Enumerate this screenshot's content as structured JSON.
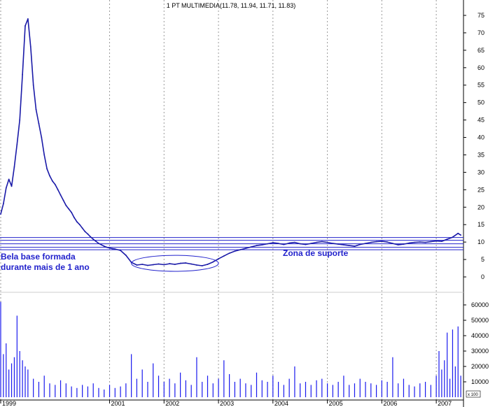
{
  "chart_data": {
    "type": "line",
    "title": "1 PT MULTIMEDIA(11.78, 11.94, 11.71, 11.83)",
    "price_axis": {
      "ylim": [
        0,
        75
      ],
      "ticks": [
        0,
        5,
        10,
        15,
        20,
        25,
        30,
        35,
        40,
        45,
        50,
        55,
        60,
        65,
        70,
        75
      ]
    },
    "volume_axis": {
      "ylim": [
        0,
        60000
      ],
      "ticks": [
        10000,
        20000,
        30000,
        40000,
        50000,
        60000
      ],
      "scale_label": "x 100"
    },
    "x_axis": {
      "xlim": [
        1999.0,
        2007.5
      ],
      "tick_labels": [
        "1999",
        "2001",
        "2002",
        "2003",
        "2004",
        "2005",
        "2006",
        "2007"
      ],
      "tick_values": [
        1999.0,
        2001.0,
        2002.0,
        2003.0,
        2004.0,
        2005.0,
        2006.0,
        2007.0
      ]
    },
    "grid": true,
    "series": [
      {
        "kind": "price",
        "x": [
          1999.0,
          1999.05,
          1999.1,
          1999.15,
          1999.2,
          1999.25,
          1999.3,
          1999.35,
          1999.4,
          1999.45,
          1999.5,
          1999.55,
          1999.6,
          1999.65,
          1999.7,
          1999.75,
          1999.8,
          1999.85,
          1999.9,
          1999.95,
          2000.0,
          2000.05,
          2000.1,
          2000.15,
          2000.2,
          2000.25,
          2000.3,
          2000.35,
          2000.4,
          2000.45,
          2000.5,
          2000.55,
          2000.6,
          2000.65,
          2000.7,
          2000.75,
          2000.8,
          2000.85,
          2000.9,
          2000.95,
          2001.0,
          2001.05,
          2001.1,
          2001.2,
          2001.3,
          2001.4,
          2001.5,
          2001.6,
          2001.7,
          2001.8,
          2001.9,
          2002.0,
          2002.1,
          2002.2,
          2002.3,
          2002.4,
          2002.5,
          2002.6,
          2002.7,
          2002.8,
          2002.9,
          2003.0,
          2003.1,
          2003.2,
          2003.3,
          2003.4,
          2003.5,
          2003.6,
          2003.7,
          2003.8,
          2003.9,
          2004.0,
          2004.1,
          2004.2,
          2004.3,
          2004.4,
          2004.5,
          2004.6,
          2004.7,
          2004.8,
          2004.9,
          2005.0,
          2005.1,
          2005.2,
          2005.3,
          2005.4,
          2005.5,
          2005.6,
          2005.7,
          2005.8,
          2005.9,
          2006.0,
          2006.1,
          2006.2,
          2006.3,
          2006.4,
          2006.5,
          2006.6,
          2006.7,
          2006.8,
          2006.9,
          2007.0,
          2007.1,
          2007.2,
          2007.3,
          2007.4,
          2007.45
        ],
        "y": [
          18.0,
          21.0,
          25.5,
          28.0,
          26.0,
          31.5,
          38.0,
          45.0,
          58.0,
          72.0,
          74.0,
          66.0,
          55.0,
          48.0,
          44.0,
          40.0,
          35.0,
          31.0,
          29.0,
          27.5,
          26.5,
          25.0,
          23.5,
          22.0,
          20.5,
          19.5,
          18.5,
          17.0,
          15.8,
          15.0,
          14.0,
          13.0,
          12.3,
          11.5,
          10.8,
          10.2,
          9.6,
          9.2,
          8.8,
          8.5,
          8.3,
          8.1,
          8.0,
          7.6,
          6.2,
          4.2,
          3.4,
          3.6,
          3.3,
          3.5,
          3.7,
          3.5,
          3.8,
          3.6,
          3.9,
          4.0,
          3.7,
          3.4,
          3.2,
          3.6,
          4.3,
          5.2,
          6.0,
          6.8,
          7.4,
          7.8,
          8.2,
          8.6,
          9.0,
          9.2,
          9.5,
          9.8,
          9.6,
          9.3,
          9.7,
          9.9,
          9.5,
          9.3,
          9.6,
          9.9,
          10.1,
          9.9,
          9.6,
          9.4,
          9.2,
          9.0,
          8.8,
          9.3,
          9.6,
          9.9,
          10.1,
          10.2,
          10.0,
          9.6,
          9.2,
          9.4,
          9.7,
          9.9,
          10.0,
          9.9,
          10.1,
          10.3,
          10.2,
          10.8,
          11.4,
          12.5,
          12.0
        ]
      },
      {
        "kind": "volume",
        "x": [
          1999.0,
          1999.05,
          1999.1,
          1999.15,
          1999.2,
          1999.25,
          1999.3,
          1999.35,
          1999.4,
          1999.45,
          1999.5,
          1999.6,
          1999.7,
          1999.8,
          1999.9,
          2000.0,
          2000.1,
          2000.2,
          2000.3,
          2000.4,
          2000.5,
          2000.6,
          2000.7,
          2000.8,
          2000.9,
          2001.0,
          2001.1,
          2001.2,
          2001.3,
          2001.4,
          2001.5,
          2001.6,
          2001.7,
          2001.8,
          2001.9,
          2002.0,
          2002.1,
          2002.2,
          2002.3,
          2002.4,
          2002.5,
          2002.6,
          2002.7,
          2002.8,
          2002.9,
          2003.0,
          2003.1,
          2003.2,
          2003.3,
          2003.4,
          2003.5,
          2003.6,
          2003.7,
          2003.8,
          2003.9,
          2004.0,
          2004.1,
          2004.2,
          2004.3,
          2004.4,
          2004.5,
          2004.6,
          2004.7,
          2004.8,
          2004.9,
          2005.0,
          2005.1,
          2005.2,
          2005.3,
          2005.4,
          2005.5,
          2005.6,
          2005.7,
          2005.8,
          2005.9,
          2006.0,
          2006.1,
          2006.2,
          2006.3,
          2006.4,
          2006.5,
          2006.6,
          2006.7,
          2006.8,
          2006.9,
          2007.0,
          2007.05,
          2007.1,
          2007.15,
          2007.2,
          2007.25,
          2007.3,
          2007.35,
          2007.4,
          2007.45
        ],
        "y": [
          62000,
          28000,
          35000,
          18000,
          22000,
          26000,
          53000,
          30000,
          24000,
          20000,
          18000,
          12000,
          10000,
          14000,
          9000,
          8000,
          11000,
          9000,
          7000,
          6000,
          8000,
          7000,
          9000,
          6000,
          5000,
          8000,
          6000,
          7000,
          9000,
          28000,
          12000,
          18000,
          10000,
          22000,
          14000,
          10000,
          12000,
          9000,
          16000,
          11000,
          8000,
          26000,
          10000,
          14000,
          9000,
          12000,
          24000,
          15000,
          10000,
          12000,
          9000,
          8000,
          16000,
          11000,
          10000,
          14000,
          10000,
          8000,
          12000,
          20000,
          9000,
          10000,
          8000,
          11000,
          12000,
          9000,
          8000,
          10000,
          14000,
          8000,
          9000,
          12000,
          10000,
          9000,
          8000,
          11000,
          10000,
          26000,
          9000,
          12000,
          8000,
          7000,
          9000,
          10000,
          8000,
          14000,
          30000,
          18000,
          24000,
          42000,
          12000,
          44000,
          20000,
          46000,
          14000
        ]
      }
    ],
    "horizontal_lines": [
      11.3,
      10.5,
      9.5,
      8.5,
      7.8
    ],
    "annotations": {
      "left_note_line1": "Bela base formada",
      "left_note_line2": "durante mais de 1 ano",
      "right_note": "Zona de suporte"
    },
    "base_ellipse": {
      "x_range": [
        2001.4,
        2003.0
      ],
      "y_center": 3.9,
      "y_radius": 2.3
    }
  }
}
